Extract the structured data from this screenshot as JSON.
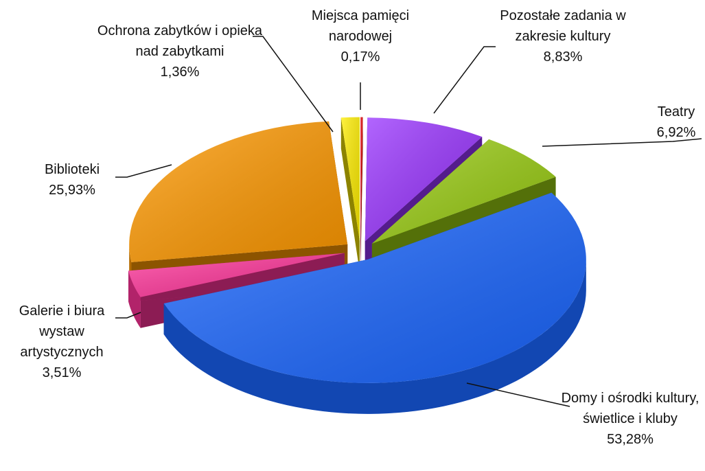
{
  "chart_data": {
    "type": "pie3d",
    "categories": [
      "Miejsca pamięci narodowej",
      "Pozostałe zadania w zakresie kultury",
      "Teatry",
      "Domy i ośrodki kultury, świetlice i kluby",
      "Galerie i biura wystaw artystycznych",
      "Biblioteki",
      "Ochrona zabytków i opieka nad zabytkami"
    ],
    "values": [
      0.17,
      8.83,
      6.92,
      53.28,
      3.51,
      25.93,
      1.36
    ],
    "value_labels": [
      "0,17%",
      "8,83%",
      "6,92%",
      "53,28%",
      "3,51%",
      "25,93%",
      "1,36%"
    ],
    "colors": [
      "#e00000",
      "#9933ff",
      "#99cc11",
      "#1a66ff",
      "#ff3399",
      "#ff9900",
      "#ffee00"
    ]
  }
}
